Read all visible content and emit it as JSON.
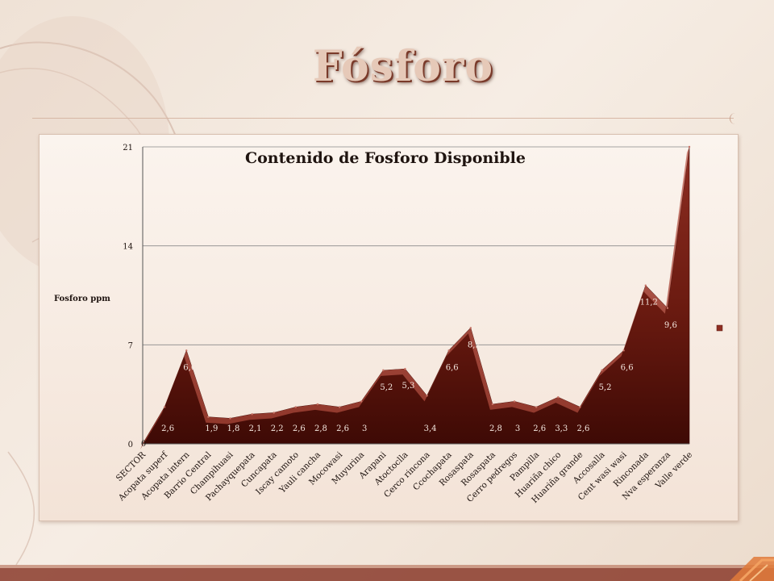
{
  "slide": {
    "title": "Fósforo"
  },
  "colors": {
    "area_dark": "#4a0f08",
    "area_mid": "#7a1f14",
    "area_light": "#b5574a",
    "grid": "#8a8a8a",
    "title_fill": "#e6c9b8",
    "title_shadow": "#7a3a2a"
  },
  "chart_data": {
    "type": "area",
    "title": "Contenido de Fosforo Disponible",
    "ylabel": "Fosforo ppm",
    "xlabel": "",
    "ylim": [
      0,
      21
    ],
    "yticks": [
      0,
      7,
      14,
      21
    ],
    "grid": true,
    "legend_placement": "right",
    "categories": [
      "SECTOR",
      "Acopata superf",
      "Acopata intern",
      "Barrio Central",
      "Champihuasi",
      "Pachayquepata",
      "Cuncapata",
      "Iscay camoto",
      "Yauli cancha",
      "Mocowasi",
      "Muyurina",
      "Arapani",
      "Atoctoclla",
      "Cerco rincona",
      "Ccochapata",
      "Rosaspata",
      "Rosaspata",
      "Cerro pedregos",
      "Pampilla",
      "Huariña chico",
      "Huariña grande",
      "Accosalla",
      "Cent wasi wasi",
      "Rinconada",
      "Nva esperanza",
      "Valle verde"
    ],
    "values": [
      0,
      2.6,
      6.6,
      1.9,
      1.8,
      2.1,
      2.2,
      2.6,
      2.8,
      2.6,
      3,
      5.2,
      5.3,
      3.4,
      6.6,
      8.2,
      2.8,
      3,
      2.6,
      3.3,
      2.6,
      5.2,
      6.6,
      11.2,
      9.6,
      21
    ],
    "data_labels": [
      "0",
      "2,6",
      "6,6",
      "1,9",
      "1,8",
      "2,1",
      "2,2",
      "2,6",
      "2,8",
      "2,6",
      "3",
      "5,2",
      "5,3",
      "3,4",
      "6,6",
      "8,2",
      "2,8",
      "3",
      "2,6",
      "3,3",
      "2,6",
      "5,2",
      "6,6",
      "11,2",
      "9,6",
      ""
    ],
    "ytick_labels": [
      "0",
      "7",
      "14",
      "21"
    ]
  }
}
